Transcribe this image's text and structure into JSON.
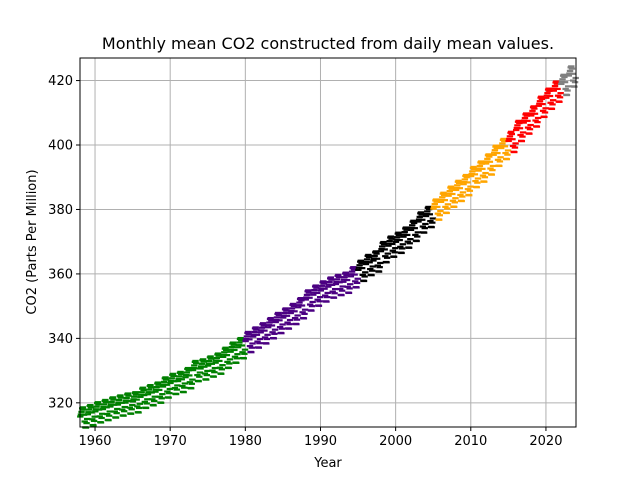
{
  "chart_data": {
    "type": "scatter",
    "marker": "horizontal-dash",
    "title": "Monthly mean CO2 constructed from daily mean values.",
    "xlabel": "Year",
    "ylabel": "CO2 (Parts Per Million)",
    "xlim": [
      1958,
      2024
    ],
    "ylim": [
      312.5,
      427
    ],
    "x_ticks": [
      1960,
      1970,
      1980,
      1990,
      2000,
      2010,
      2020
    ],
    "y_ticks": [
      320,
      340,
      360,
      380,
      400,
      420
    ],
    "grid": true,
    "legend": "none",
    "series": [
      {
        "color": "#008000",
        "x": [
          1958.5,
          1959.5,
          1960.5,
          1961.5,
          1962.5,
          1963.5,
          1964.5,
          1965.5,
          1966.5,
          1967.5,
          1968.5,
          1969.5,
          1970.5,
          1971.5,
          1972.5,
          1973.5,
          1974.5,
          1975.5,
          1976.5,
          1977.5,
          1978.5,
          1979.5
        ],
        "y": [
          315.3,
          316.0,
          316.9,
          317.6,
          318.4,
          319.0,
          319.6,
          320.0,
          321.4,
          322.2,
          323.0,
          324.6,
          325.7,
          326.3,
          327.5,
          329.7,
          330.2,
          331.1,
          332.0,
          333.8,
          335.4,
          336.8
        ]
      },
      {
        "color": "#4b0082",
        "x": [
          1980.5,
          1981.5,
          1982.5,
          1983.5,
          1984.5,
          1985.5,
          1986.5,
          1987.5,
          1988.5,
          1989.5,
          1990.5,
          1991.5,
          1992.5,
          1993.5,
          1994.5
        ],
        "y": [
          338.7,
          340.1,
          341.4,
          343.0,
          344.6,
          346.0,
          347.4,
          349.2,
          351.6,
          353.1,
          354.4,
          355.6,
          356.4,
          357.1,
          358.8
        ]
      },
      {
        "color": "#000000",
        "x": [
          1995.5,
          1996.5,
          1997.5,
          1998.5,
          1999.5,
          2000.5,
          2001.5,
          2002.5,
          2003.5,
          2004.5
        ],
        "y": [
          360.8,
          362.6,
          363.7,
          366.6,
          368.3,
          369.5,
          371.1,
          373.2,
          375.8,
          377.5
        ]
      },
      {
        "color": "#ffa500",
        "x": [
          2005.5,
          2006.5,
          2007.5,
          2008.5,
          2009.5,
          2010.5,
          2011.5,
          2012.5,
          2013.5,
          2014.5
        ],
        "y": [
          379.8,
          381.9,
          383.8,
          385.6,
          387.4,
          389.9,
          391.6,
          393.8,
          396.5,
          398.6
        ]
      },
      {
        "color": "#ff0000",
        "x": [
          2015.5,
          2016.5,
          2017.5,
          2018.5,
          2019.5,
          2020.5,
          2021.5
        ],
        "y": [
          400.8,
          404.2,
          406.5,
          408.7,
          411.7,
          414.2,
          416.4
        ]
      },
      {
        "color": "#808080",
        "x": [
          2022.5,
          2023.5
        ],
        "y": [
          418.5,
          421.1
        ]
      }
    ]
  }
}
